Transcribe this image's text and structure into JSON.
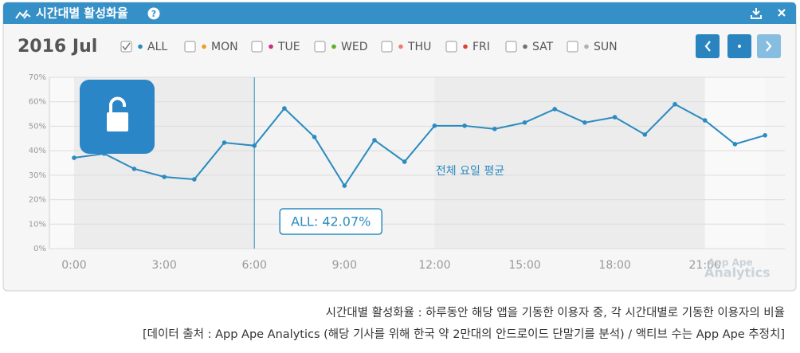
{
  "header": {
    "title": "시간대별 활성화율"
  },
  "chart_data": {
    "type": "line",
    "period": "2016 Jul",
    "filters": [
      {
        "name": "ALL",
        "color": "#2a8bc0",
        "checked": true
      },
      {
        "name": "MON",
        "color": "#e8a02a",
        "checked": false
      },
      {
        "name": "TUE",
        "color": "#c2307e",
        "checked": false
      },
      {
        "name": "WED",
        "color": "#5ab030",
        "checked": false
      },
      {
        "name": "THU",
        "color": "#f07c72",
        "checked": false
      },
      {
        "name": "FRI",
        "color": "#e04030",
        "checked": false
      },
      {
        "name": "SAT",
        "color": "#707070",
        "checked": false
      },
      {
        "name": "SUN",
        "color": "#b0b0b0",
        "checked": false
      }
    ],
    "categories": [
      "0:00",
      null,
      null,
      "3:00",
      null,
      null,
      "6:00",
      null,
      null,
      "9:00",
      null,
      null,
      "12:00",
      null,
      null,
      "15:00",
      null,
      null,
      "18:00",
      null,
      null,
      "21:00",
      null,
      null
    ],
    "series": [
      {
        "name": "ALL",
        "color": "#2a8bc0",
        "values": [
          37.1,
          38.8,
          32.6,
          29.3,
          28.3,
          43.3,
          42.07,
          57.3,
          45.6,
          25.7,
          44.3,
          35.5,
          50.2,
          50.2,
          48.9,
          51.5,
          57.0,
          51.5,
          53.7,
          46.6,
          59.0,
          52.4,
          42.7,
          46.3
        ],
        "value_labels": [
          null,
          null,
          null,
          null,
          null,
          null,
          "ALL: 42.07%",
          null,
          null,
          null,
          null,
          null,
          null,
          null,
          null,
          null,
          null,
          null,
          null,
          null,
          null,
          null,
          null,
          null
        ]
      }
    ],
    "ylim": [
      0,
      70
    ],
    "yticks": [
      {
        "value": 0,
        "label": "0%"
      },
      {
        "value": 10,
        "label": "10%"
      },
      {
        "value": 20,
        "label": "20%"
      },
      {
        "value": 30,
        "label": "30%"
      },
      {
        "value": 40,
        "label": "40%"
      },
      {
        "value": 50,
        "label": "50%"
      },
      {
        "value": 60,
        "label": "60%"
      },
      {
        "value": 70,
        "label": "70%"
      }
    ],
    "grid": true,
    "annotation": "전체 요일 평균",
    "watermark": [
      "App Ape",
      "Analytics"
    ]
  },
  "caption": [
    "시간대별 활성화율 : 하루동안 해당 앱을 기동한 이용자 중, 각 시간대별로 기동한 이용자의 비율",
    "[데이터 출처 : App Ape Analytics (해당 기사를 위해 한국 약 2만대의 안드로이드 단말기를 분석) / 액티브 수는 App Ape 추정치]"
  ]
}
